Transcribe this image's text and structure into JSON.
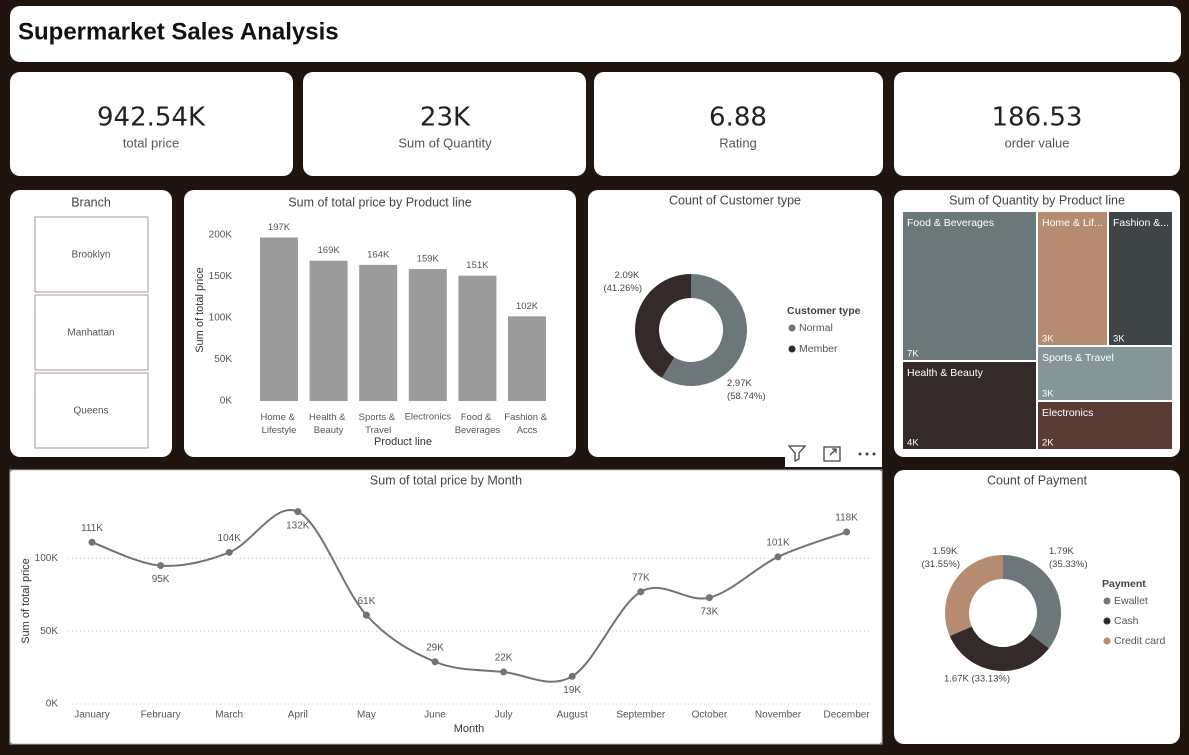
{
  "header": {
    "title": "Supermarket Sales Analysis"
  },
  "kpis": [
    {
      "value": "942.54K",
      "label": "total price"
    },
    {
      "value": "23K",
      "label": "Sum of Quantity"
    },
    {
      "value": "6.88",
      "label": "Rating"
    },
    {
      "value": "186.53",
      "label": "order value"
    }
  ],
  "slicer": {
    "title": "Branch",
    "items": [
      "Brooklyn",
      "Manhattan",
      "Queens"
    ]
  },
  "chart_data": [
    {
      "type": "bar",
      "title": "Sum of total price by Product line",
      "x_label": "Product line",
      "y_label": "Sum of total price",
      "categories": [
        "Home & Lifestyle",
        "Health & Beauty",
        "Sports & Travel",
        "Electronics",
        "Food & Beverages",
        "Fashion & Accs"
      ],
      "values": [
        197000,
        169000,
        164000,
        159000,
        151000,
        102000
      ],
      "value_labels": [
        "197K",
        "169K",
        "164K",
        "159K",
        "151K",
        "102K"
      ],
      "color": "#9b9b9b",
      "ylim": [
        0,
        200000
      ],
      "yticks": [
        {
          "value": 0,
          "label": "0K"
        },
        {
          "value": 50000,
          "label": "50K"
        },
        {
          "value": 100000,
          "label": "100K"
        },
        {
          "value": 150000,
          "label": "150K"
        },
        {
          "value": 200000,
          "label": "200K"
        }
      ]
    },
    {
      "type": "donut",
      "title": "Count of Customer type",
      "legend_title": "Customer type",
      "categories": [
        "Normal",
        "Member"
      ],
      "values": [
        2970,
        2090
      ],
      "value_labels": [
        "2.97K (58.74%)",
        "2.09K (41.26%)"
      ],
      "colors": [
        "#6b7779",
        "#342a2a"
      ]
    },
    {
      "type": "treemap",
      "title": "Sum of Quantity by Product line",
      "categories": [
        "Food & Beverages",
        "Home & Lif...",
        "Fashion &...",
        "Sports & Travel",
        "Health & Beauty",
        "Electronics"
      ],
      "values": [
        7000,
        3000,
        3000,
        3000,
        4000,
        2000
      ],
      "value_labels": [
        "7K",
        "3K",
        "3K",
        "3K",
        "4K",
        "2K"
      ],
      "colors": [
        "#6b7779",
        "#b58b72",
        "#3f4447",
        "#869597",
        "#342a2a",
        "#5a3b35"
      ]
    },
    {
      "type": "line",
      "title": "Sum of total price by Month",
      "x_label": "Month",
      "y_label": "Sum of total price",
      "categories": [
        "January",
        "February",
        "March",
        "April",
        "May",
        "June",
        "July",
        "August",
        "September",
        "October",
        "November",
        "December"
      ],
      "values": [
        111000,
        95000,
        104000,
        132000,
        61000,
        29000,
        22000,
        19000,
        77000,
        73000,
        101000,
        118000
      ],
      "value_labels": [
        "111K",
        "95K",
        "104K",
        "132K",
        "61K",
        "29K",
        "22K",
        "19K",
        "77K",
        "73K",
        "101K",
        "118K"
      ],
      "color": "#6e7573",
      "ylim": [
        0,
        140000
      ],
      "grid": true,
      "yticks": [
        {
          "value": 0,
          "label": "0K"
        },
        {
          "value": 50000,
          "label": "50K"
        },
        {
          "value": 100000,
          "label": "100K"
        }
      ]
    },
    {
      "type": "donut",
      "title": "Count of Payment",
      "legend_title": "Payment",
      "categories": [
        "Ewallet",
        "Cash",
        "Credit card"
      ],
      "values": [
        1790,
        1670,
        1590
      ],
      "value_labels": [
        "1.79K (35.33%)",
        "1.67K (33.13%)",
        "1.59K (31.55%)"
      ],
      "colors": [
        "#6b7779",
        "#342a2a",
        "#b58b72"
      ]
    }
  ]
}
